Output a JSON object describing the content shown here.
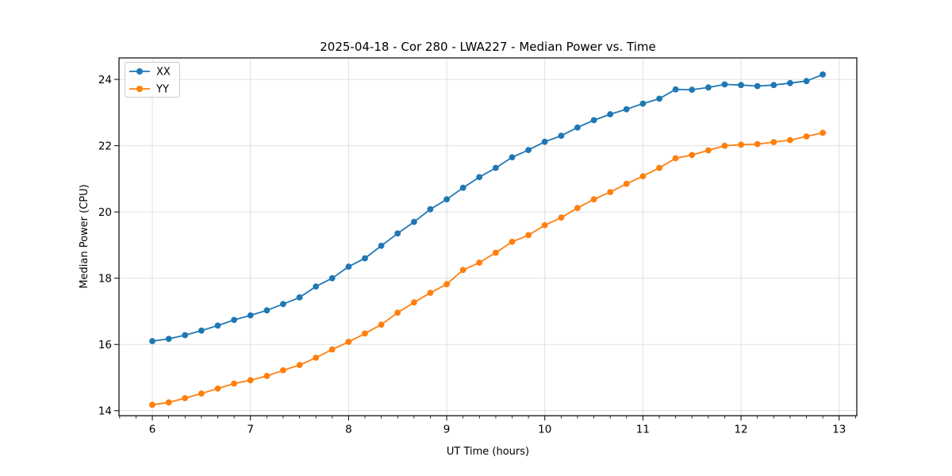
{
  "figure": {
    "background": "#ffffff",
    "frame_color": "#000000",
    "tick_color": "#000000"
  },
  "chart_data": {
    "type": "line",
    "title": "2025-04-18 - Cor 280 - LWA227 - Median Power vs. Time",
    "xlabel": "UT Time (hours)",
    "ylabel": "Median Power (CPU)",
    "xlim": [
      5.66,
      13.18
    ],
    "ylim": [
      13.85,
      24.65
    ],
    "xticks": [
      6,
      7,
      8,
      9,
      10,
      11,
      12,
      13
    ],
    "yticks": [
      14,
      16,
      18,
      20,
      22,
      24
    ],
    "x_minor_tick_step": 0.166667,
    "grid": true,
    "grid_color": "#dcdcdc",
    "legend_position": "upper-left",
    "x": [
      6.0,
      6.167,
      6.333,
      6.5,
      6.667,
      6.833,
      7.0,
      7.167,
      7.333,
      7.5,
      7.667,
      7.833,
      8.0,
      8.167,
      8.333,
      8.5,
      8.667,
      8.833,
      9.0,
      9.167,
      9.333,
      9.5,
      9.667,
      9.833,
      10.0,
      10.167,
      10.333,
      10.5,
      10.667,
      10.833,
      11.0,
      11.167,
      11.333,
      11.5,
      11.667,
      11.833,
      12.0,
      12.167,
      12.333,
      12.5,
      12.667,
      12.833
    ],
    "series": [
      {
        "name": "XX",
        "color": "#1f77b4",
        "values": [
          16.1,
          16.17,
          16.28,
          16.42,
          16.57,
          16.74,
          16.88,
          17.03,
          17.22,
          17.42,
          17.75,
          18.0,
          18.35,
          18.6,
          18.98,
          19.35,
          19.7,
          20.08,
          20.38,
          20.73,
          21.05,
          21.33,
          21.65,
          21.87,
          22.12,
          22.3,
          22.55,
          22.77,
          22.95,
          23.1,
          23.27,
          23.42,
          23.7,
          23.69,
          23.76,
          23.85,
          23.83,
          23.8,
          23.83,
          23.89,
          23.95,
          24.15
        ]
      },
      {
        "name": "YY",
        "color": "#ff7f0e",
        "values": [
          14.18,
          14.25,
          14.38,
          14.52,
          14.67,
          14.82,
          14.92,
          15.05,
          15.22,
          15.38,
          15.6,
          15.85,
          16.08,
          16.33,
          16.6,
          16.96,
          17.27,
          17.56,
          17.82,
          18.25,
          18.47,
          18.77,
          19.1,
          19.3,
          19.6,
          19.83,
          20.12,
          20.38,
          20.6,
          20.85,
          21.08,
          21.33,
          21.62,
          21.72,
          21.86,
          22.0,
          22.03,
          22.05,
          22.11,
          22.17,
          22.28,
          22.39
        ]
      }
    ]
  }
}
